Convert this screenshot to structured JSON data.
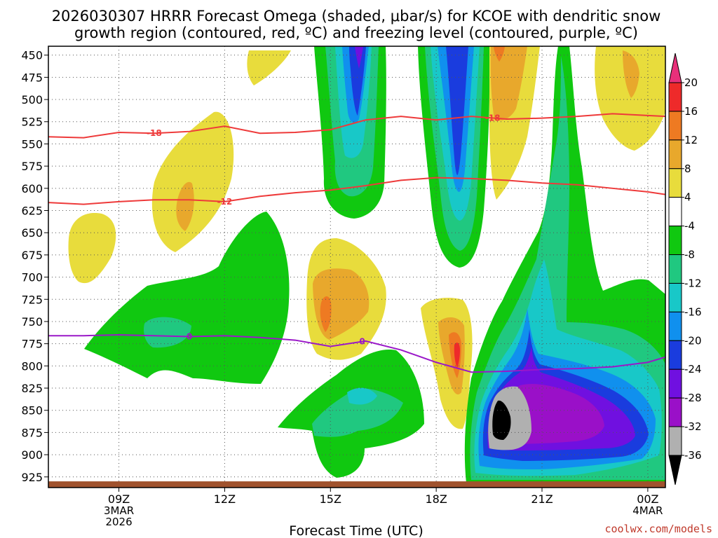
{
  "chart_data": {
    "type": "heatmap",
    "title_line1": "2026030307 HRRR Forecast Omega (shaded, μbar/s) for KCOE with dendritic snow",
    "title_line2": "growth region (contoured, red, ºC) and freezing level (contoured, purple, ºC)",
    "xlabel": "Forecast Time (UTC)",
    "credit": "coolwx.com/models",
    "x_range_hours_after_07Z": [
      0,
      17.5
    ],
    "y_range_hPa": [
      440,
      937
    ],
    "pressure_ticks": [
      450,
      475,
      500,
      525,
      550,
      575,
      600,
      625,
      650,
      675,
      700,
      725,
      750,
      775,
      800,
      825,
      850,
      875,
      900,
      925
    ],
    "time_ticks": [
      {
        "hour": 2,
        "label": "09Z",
        "date1": "3MAR",
        "date2": "2026"
      },
      {
        "hour": 5,
        "label": "12Z",
        "date1": "",
        "date2": ""
      },
      {
        "hour": 8,
        "label": "15Z",
        "date1": "",
        "date2": ""
      },
      {
        "hour": 11,
        "label": "18Z",
        "date1": "",
        "date2": ""
      },
      {
        "hour": 14,
        "label": "21Z",
        "date1": "",
        "date2": ""
      },
      {
        "hour": 17,
        "label": "00Z",
        "date1": "4MAR",
        "date2": ""
      }
    ],
    "colorbar": {
      "labels": [
        "20",
        "16",
        "12",
        "8",
        "4",
        "-4",
        "-8",
        "-12",
        "-16",
        "-20",
        "-24",
        "-28",
        "-32",
        "-36"
      ],
      "colors": [
        "#e8307a",
        "#ee2a2a",
        "#ee7a22",
        "#e8a82c",
        "#e8dc3c",
        "#ffffff",
        "#10c810",
        "#20c880",
        "#18c8c8",
        "#1090ee",
        "#1a3cde",
        "#7010e0",
        "#9a10c8",
        "#b0b0b0",
        "#000000"
      ]
    },
    "isotherms": [
      {
        "label": "-18",
        "color": "#ee3a3a",
        "points": [
          [
            0,
            542
          ],
          [
            1,
            543
          ],
          [
            2,
            537
          ],
          [
            3,
            538
          ],
          [
            4,
            536
          ],
          [
            5,
            530
          ],
          [
            6,
            538
          ],
          [
            7,
            537
          ],
          [
            8,
            534
          ],
          [
            9,
            523
          ],
          [
            10,
            519
          ],
          [
            11,
            523
          ],
          [
            12,
            519
          ],
          [
            13,
            522
          ],
          [
            14,
            521
          ],
          [
            15,
            519
          ],
          [
            16,
            516
          ],
          [
            17,
            518
          ],
          [
            17.5,
            519
          ]
        ]
      },
      {
        "label": "-12",
        "color": "#ee3a3a",
        "points": [
          [
            0,
            616
          ],
          [
            1,
            618
          ],
          [
            2,
            615
          ],
          [
            3,
            613
          ],
          [
            4,
            613
          ],
          [
            5,
            615
          ],
          [
            6,
            609
          ],
          [
            7,
            605
          ],
          [
            8,
            602
          ],
          [
            9,
            597
          ],
          [
            10,
            591
          ],
          [
            11,
            588
          ],
          [
            12,
            589
          ],
          [
            13,
            591
          ],
          [
            14,
            594
          ],
          [
            15,
            596
          ],
          [
            16,
            600
          ],
          [
            17,
            604
          ],
          [
            17.5,
            607
          ]
        ]
      },
      {
        "label": "0",
        "color": "#9a18c8",
        "points": [
          [
            0,
            766
          ],
          [
            1,
            766
          ],
          [
            2,
            765
          ],
          [
            3,
            766
          ],
          [
            4,
            767
          ],
          [
            5,
            766
          ],
          [
            6,
            768
          ],
          [
            7,
            771
          ],
          [
            8,
            778
          ],
          [
            9,
            772
          ],
          [
            10,
            782
          ],
          [
            11,
            796
          ],
          [
            12,
            807
          ],
          [
            13,
            806
          ],
          [
            14,
            804
          ],
          [
            15,
            803
          ],
          [
            16,
            801
          ],
          [
            17,
            796
          ],
          [
            17.5,
            790
          ]
        ]
      }
    ],
    "surface": {
      "color": "#a0522d",
      "pressure_top_hPa": 930
    }
  }
}
